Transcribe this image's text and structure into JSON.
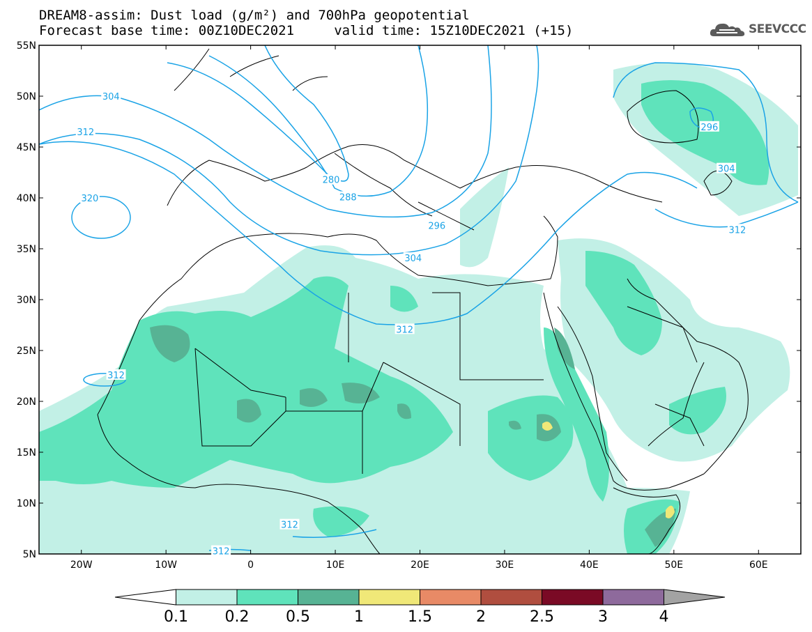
{
  "header": {
    "title_line1": "DREAM8-assim: Dust load (g/m²) and 700hPa geopotential",
    "title_line2": "Forecast base time: 00Z10DEC2021     valid time: 15Z10DEC2021 (+15)"
  },
  "logo": {
    "text": "SEEVCCC",
    "icon": "cloud-logo-icon"
  },
  "map": {
    "lon_range": [
      -25,
      65
    ],
    "lat_range": [
      5,
      55
    ],
    "lon_ticks": [
      {
        "value": -20,
        "label": "20W"
      },
      {
        "value": -10,
        "label": "10W"
      },
      {
        "value": 0,
        "label": "0"
      },
      {
        "value": 10,
        "label": "10E"
      },
      {
        "value": 20,
        "label": "20E"
      },
      {
        "value": 30,
        "label": "30E"
      },
      {
        "value": 40,
        "label": "40E"
      },
      {
        "value": 50,
        "label": "50E"
      },
      {
        "value": 60,
        "label": "60E"
      }
    ],
    "lat_ticks": [
      {
        "value": 55,
        "label": "55N"
      },
      {
        "value": 50,
        "label": "50N"
      },
      {
        "value": 45,
        "label": "45N"
      },
      {
        "value": 40,
        "label": "40N"
      },
      {
        "value": 35,
        "label": "35N"
      },
      {
        "value": 30,
        "label": "30N"
      },
      {
        "value": 25,
        "label": "25N"
      },
      {
        "value": 20,
        "label": "20N"
      },
      {
        "value": 15,
        "label": "15N"
      },
      {
        "value": 10,
        "label": "10N"
      },
      {
        "value": 5,
        "label": "5N"
      }
    ],
    "contour_color": "#1aa3e6",
    "contour_labels": [
      {
        "text": "304",
        "lon": -16.5,
        "lat": 50.0
      },
      {
        "text": "312",
        "lon": -19.5,
        "lat": 46.5
      },
      {
        "text": "320",
        "lon": -19.0,
        "lat": 40.0
      },
      {
        "text": "280",
        "lon": 9.5,
        "lat": 41.8
      },
      {
        "text": "288",
        "lon": 11.5,
        "lat": 40.1
      },
      {
        "text": "296",
        "lon": 22.0,
        "lat": 37.3
      },
      {
        "text": "304",
        "lon": 19.2,
        "lat": 34.1
      },
      {
        "text": "312",
        "lon": 18.2,
        "lat": 27.1
      },
      {
        "text": "312",
        "lon": -15.9,
        "lat": 22.6
      },
      {
        "text": "312",
        "lon": 4.6,
        "lat": 7.9
      },
      {
        "text": "312",
        "lon": -3.5,
        "lat": 5.3
      },
      {
        "text": "296",
        "lon": 54.2,
        "lat": 47.0
      },
      {
        "text": "304",
        "lon": 56.2,
        "lat": 42.9
      },
      {
        "text": "312",
        "lon": 57.5,
        "lat": 36.9
      }
    ]
  },
  "colorbar": {
    "labels": [
      "0.1",
      "0.2",
      "0.5",
      "1",
      "1.5",
      "2",
      "2.5",
      "3",
      "4"
    ],
    "colors": [
      "#ffffff",
      "#c2f0e6",
      "#5fe3bb",
      "#57b394",
      "#f0e878",
      "#e88a66",
      "#b04e3f",
      "#7a0a25",
      "#8e6a9c",
      "#a3a3a3"
    ]
  }
}
